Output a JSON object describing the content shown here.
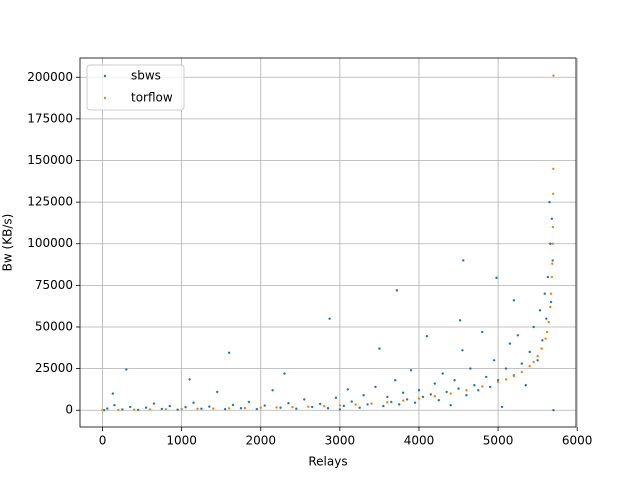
{
  "chart_data": {
    "type": "scatter",
    "xlabel": "Relays",
    "ylabel": "Bw (KB/s)",
    "xlim": [
      -285,
      5985
    ],
    "ylim": [
      -10075,
      211575
    ],
    "xticks": [
      0,
      1000,
      2000,
      3000,
      4000,
      5000,
      6000
    ],
    "yticks": [
      0,
      25000,
      50000,
      75000,
      100000,
      125000,
      150000,
      175000,
      200000
    ],
    "grid": true,
    "legend": "upper left",
    "series": [
      {
        "name": "sbws",
        "color": "#1f77b4",
        "x": [
          20,
          60,
          150,
          250,
          350,
          450,
          550,
          650,
          750,
          850,
          950,
          1050,
          1100,
          1150,
          1250,
          1350,
          1450,
          1550,
          1650,
          1750,
          1850,
          1950,
          2050,
          2150,
          2250,
          2300,
          2350,
          2450,
          2550,
          2650,
          2750,
          2850,
          2950,
          3000,
          3050,
          3100,
          3150,
          3250,
          3300,
          3350,
          3450,
          3500,
          3550,
          3600,
          3650,
          3700,
          3750,
          3800,
          3850,
          3900,
          3950,
          4000,
          4050,
          4100,
          4150,
          4200,
          4250,
          4300,
          4350,
          4400,
          4450,
          4500,
          4550,
          4600,
          4650,
          4700,
          4750,
          4800,
          4850,
          4900,
          4950,
          5000,
          5050,
          5100,
          5150,
          5200,
          5250,
          5300,
          5350,
          5400,
          5450,
          5500,
          5530,
          5560,
          5590,
          5610,
          5630,
          5650,
          5660,
          5670,
          5680,
          5690,
          5700,
          130,
          300,
          1600,
          2870,
          3720,
          4560,
          4980,
          4520,
          5200
        ],
        "values": [
          0,
          1000,
          3000,
          500,
          2000,
          200,
          1500,
          4000,
          800,
          2500,
          300,
          1800,
          18500,
          4500,
          900,
          2200,
          11000,
          600,
          3200,
          1200,
          5000,
          700,
          2800,
          12000,
          1500,
          22000,
          4200,
          900,
          6500,
          2000,
          3800,
          1200,
          7500,
          500,
          2600,
          12500,
          5200,
          1500,
          9000,
          3500,
          14000,
          37000,
          2500,
          8000,
          5000,
          18000,
          3500,
          10500,
          6500,
          24000,
          4500,
          12000,
          8000,
          44500,
          9500,
          16000,
          6000,
          22000,
          11000,
          3000,
          18000,
          13000,
          36000,
          9000,
          25000,
          15000,
          12000,
          47000,
          20000,
          14000,
          30000,
          18000,
          2000,
          25000,
          40000,
          21000,
          45000,
          28000,
          15000,
          35000,
          50000,
          30000,
          60000,
          42000,
          70000,
          55000,
          80000,
          125000,
          100000,
          65000,
          115000,
          90000,
          0,
          10000,
          24500,
          34500,
          55000,
          72000,
          90000,
          79500,
          54000,
          66000
        ]
      },
      {
        "name": "torflow",
        "color": "#ff7f0e",
        "x": [
          0,
          200,
          400,
          600,
          800,
          1000,
          1200,
          1400,
          1600,
          1800,
          2000,
          2200,
          2400,
          2600,
          2800,
          3000,
          3200,
          3400,
          3600,
          3800,
          4000,
          4200,
          4400,
          4600,
          4800,
          5000,
          5100,
          5200,
          5300,
          5400,
          5450,
          5500,
          5550,
          5600,
          5620,
          5640,
          5660,
          5670,
          5680,
          5685,
          5690,
          5693,
          5696,
          5698,
          5700
        ],
        "values": [
          50,
          200,
          350,
          450,
          550,
          700,
          850,
          1000,
          1150,
          1300,
          1500,
          1700,
          1900,
          2150,
          2500,
          2900,
          3400,
          4000,
          4800,
          5800,
          7000,
          8400,
          10000,
          12000,
          14300,
          17000,
          18500,
          20500,
          23000,
          26500,
          29000,
          32500,
          37000,
          43000,
          47000,
          53000,
          62000,
          70000,
          80000,
          88000,
          100000,
          110000,
          130000,
          145000,
          201000
        ]
      }
    ]
  }
}
